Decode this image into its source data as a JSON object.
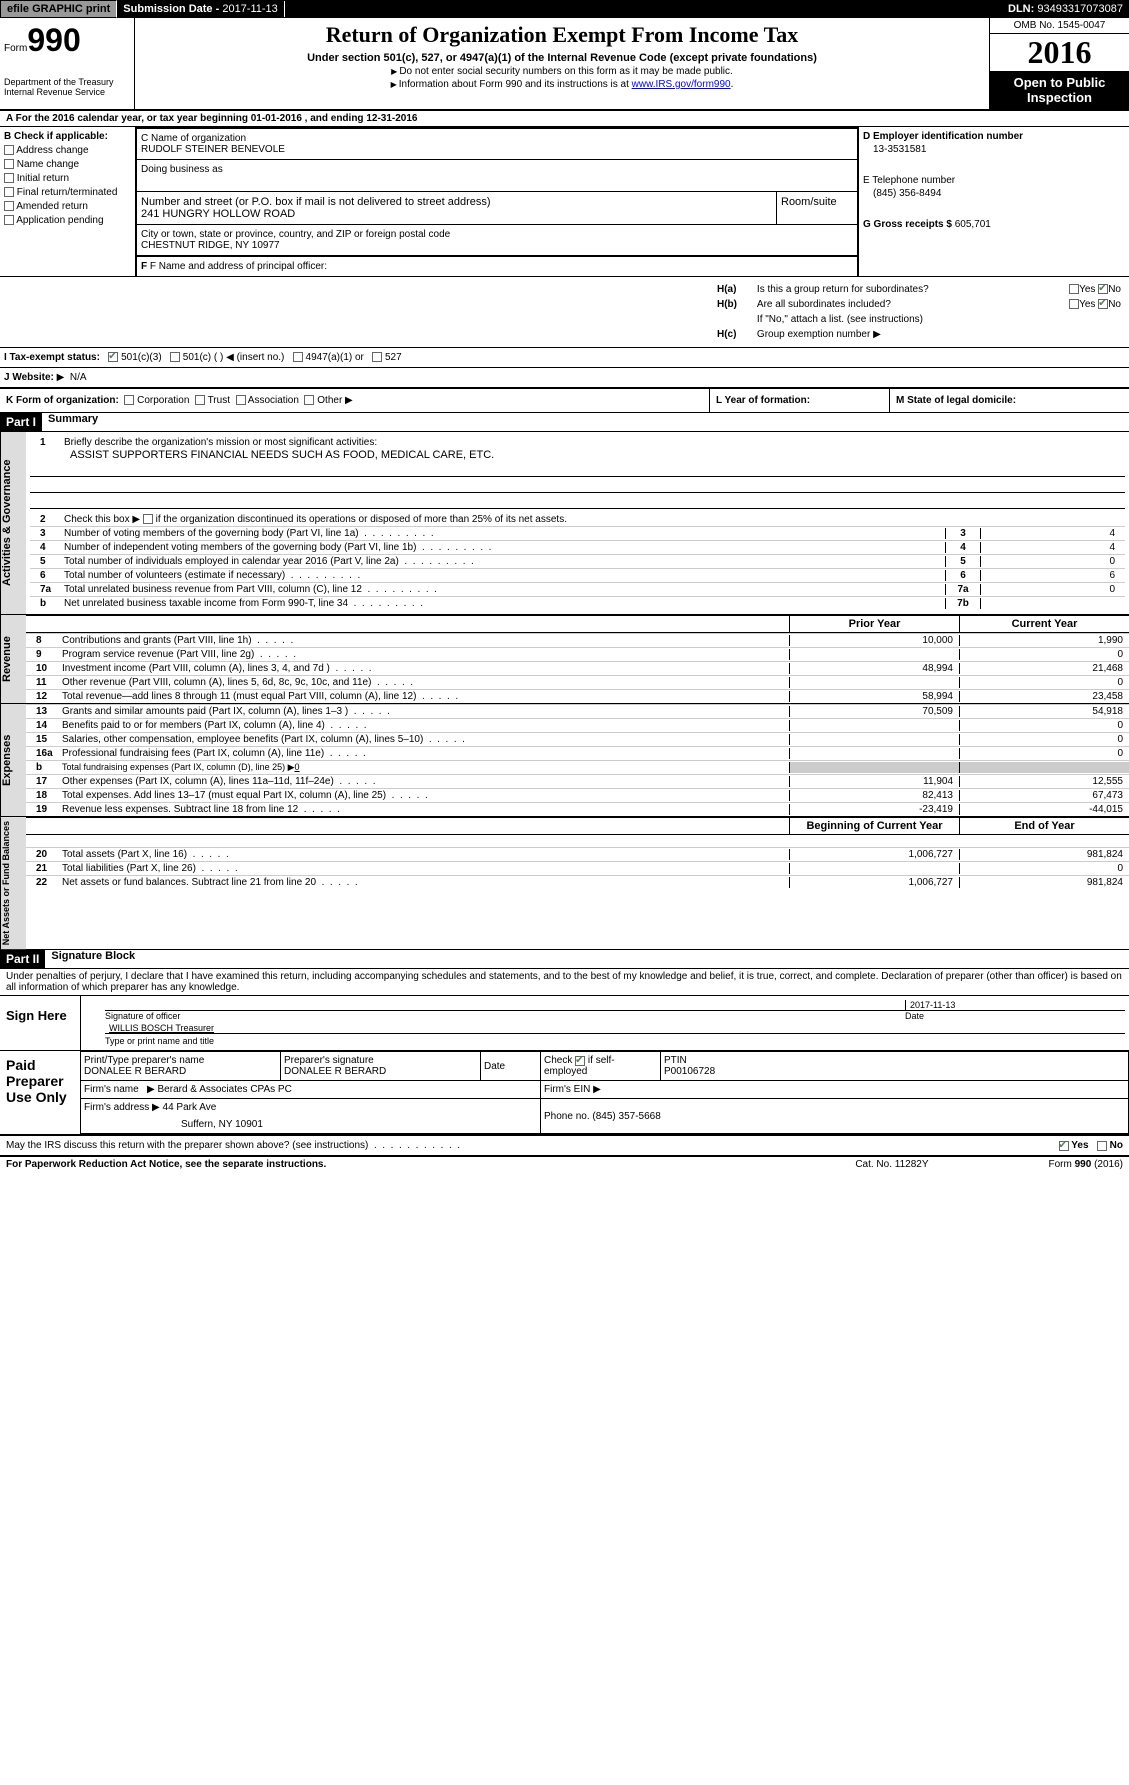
{
  "topBar": {
    "efile": "efile GRAPHIC print",
    "submissionLabel": "Submission Date - ",
    "submissionDate": "2017-11-13",
    "dlnLabel": "DLN: ",
    "dln": "93493317073087"
  },
  "header": {
    "formLabel": "Form",
    "formNum": "990",
    "dept1": "Department of the Treasury",
    "dept2": "Internal Revenue Service",
    "title": "Return of Organization Exempt From Income Tax",
    "subtitle": "Under section 501(c), 527, or 4947(a)(1) of the Internal Revenue Code (except private foundations)",
    "instr1": "Do not enter social security numbers on this form as it may be made public.",
    "instr2": "Information about Form 990 and its instructions is at ",
    "instrLink": "www.IRS.gov/form990",
    "omb": "OMB No. 1545-0047",
    "year": "2016",
    "inspection1": "Open to Public",
    "inspection2": "Inspection"
  },
  "rowA": "A  For the 2016 calendar year, or tax year beginning 01-01-2016   , and ending 12-31-2016",
  "colB": {
    "header": "B Check if applicable:",
    "items": [
      "Address change",
      "Name change",
      "Initial return",
      "Final return/terminated",
      "Amended return",
      "Application pending"
    ]
  },
  "colC": {
    "nameLabel": "C Name of organization",
    "nameVal": "RUDOLF STEINER BENEVOLE",
    "dbaLabel": "Doing business as",
    "streetLabel": "Number and street (or P.O. box if mail is not delivered to street address)",
    "streetVal": "241 HUNGRY HOLLOW ROAD",
    "roomLabel": "Room/suite",
    "cityLabel": "City or town, state or province, country, and ZIP or foreign postal code",
    "cityVal": "CHESTNUT RIDGE, NY  10977",
    "principalLabel": "F Name and address of principal officer:"
  },
  "colDE": {
    "einLabel": "D Employer identification number",
    "einVal": "13-3531581",
    "phoneLabel": "E Telephone number",
    "phoneVal": "(845) 356-8494",
    "grossLabel": "G Gross receipts $ ",
    "grossVal": "605,701"
  },
  "h": {
    "ha": "Is this a group return for subordinates?",
    "hb": "Are all subordinates included?",
    "hbNote": "If \"No,\" attach a list. (see instructions)",
    "hc": "Group exemption number",
    "yes": "Yes",
    "no": "No",
    "haLabel": "H(a)",
    "hbLabel": "H(b)",
    "hcLabel": "H(c)"
  },
  "lineI": {
    "label": "I  Tax-exempt status:",
    "opt1": "501(c)(3)",
    "opt2": "501(c) (  )",
    "opt2note": "(insert no.)",
    "opt3": "4947(a)(1) or",
    "opt4": "527"
  },
  "lineJ": {
    "label": "J  Website:",
    "val": "N/A"
  },
  "lineK": {
    "k": "K Form of organization:",
    "kOpts": [
      "Corporation",
      "Trust",
      "Association",
      "Other"
    ],
    "l": "L Year of formation:",
    "m": "M State of legal domicile:"
  },
  "part1": {
    "num": "Part I",
    "title": "Summary",
    "sidebar1": "Activities & Governance",
    "sidebar2": "Revenue",
    "sidebar3": "Expenses",
    "sidebar4": "Net Assets or Fund Balances",
    "q1": "Briefly describe the organization's mission or most significant activities:",
    "q1val": "ASSIST SUPPORTERS FINANCIAL NEEDS SUCH AS FOOD, MEDICAL CARE, ETC.",
    "q2": "Check this box",
    "q2rest": "if the organization discontinued its operations or disposed of more than 25% of its net assets.",
    "lines": [
      {
        "n": "3",
        "t": "Number of voting members of the governing body (Part VI, line 1a)",
        "b": "3",
        "v": "4"
      },
      {
        "n": "4",
        "t": "Number of independent voting members of the governing body (Part VI, line 1b)",
        "b": "4",
        "v": "4"
      },
      {
        "n": "5",
        "t": "Total number of individuals employed in calendar year 2016 (Part V, line 2a)",
        "b": "5",
        "v": "0"
      },
      {
        "n": "6",
        "t": "Total number of volunteers (estimate if necessary)",
        "b": "6",
        "v": "6"
      },
      {
        "n": "7a",
        "t": "Total unrelated business revenue from Part VIII, column (C), line 12",
        "b": "7a",
        "v": "0"
      },
      {
        "n": "b",
        "t": "Net unrelated business taxable income from Form 990-T, line 34",
        "b": "7b",
        "v": ""
      }
    ],
    "colHeaders": {
      "prior": "Prior Year",
      "current": "Current Year"
    },
    "revenue": [
      {
        "n": "8",
        "t": "Contributions and grants (Part VIII, line 1h)",
        "p": "10,000",
        "c": "1,990"
      },
      {
        "n": "9",
        "t": "Program service revenue (Part VIII, line 2g)",
        "p": "",
        "c": "0"
      },
      {
        "n": "10",
        "t": "Investment income (Part VIII, column (A), lines 3, 4, and 7d )",
        "p": "48,994",
        "c": "21,468"
      },
      {
        "n": "11",
        "t": "Other revenue (Part VIII, column (A), lines 5, 6d, 8c, 9c, 10c, and 11e)",
        "p": "",
        "c": "0"
      },
      {
        "n": "12",
        "t": "Total revenue—add lines 8 through 11 (must equal Part VIII, column (A), line 12)",
        "p": "58,994",
        "c": "23,458"
      }
    ],
    "expenses": [
      {
        "n": "13",
        "t": "Grants and similar amounts paid (Part IX, column (A), lines 1–3 )",
        "p": "70,509",
        "c": "54,918"
      },
      {
        "n": "14",
        "t": "Benefits paid to or for members (Part IX, column (A), line 4)",
        "p": "",
        "c": "0"
      },
      {
        "n": "15",
        "t": "Salaries, other compensation, employee benefits (Part IX, column (A), lines 5–10)",
        "p": "",
        "c": "0"
      },
      {
        "n": "16a",
        "t": "Professional fundraising fees (Part IX, column (A), line 11e)",
        "p": "",
        "c": "0"
      }
    ],
    "line16b": {
      "n": "b",
      "t": "Total fundraising expenses (Part IX, column (D), line 25)",
      "v": "0"
    },
    "expenses2": [
      {
        "n": "17",
        "t": "Other expenses (Part IX, column (A), lines 11a–11d, 11f–24e)",
        "p": "11,904",
        "c": "12,555"
      },
      {
        "n": "18",
        "t": "Total expenses. Add lines 13–17 (must equal Part IX, column (A), line 25)",
        "p": "82,413",
        "c": "67,473"
      },
      {
        "n": "19",
        "t": "Revenue less expenses. Subtract line 18 from line 12",
        "p": "-23,419",
        "c": "-44,015"
      }
    ],
    "colHeaders2": {
      "begin": "Beginning of Current Year",
      "end": "End of Year"
    },
    "netassets": [
      {
        "n": "20",
        "t": "Total assets (Part X, line 16)",
        "p": "1,006,727",
        "c": "981,824"
      },
      {
        "n": "21",
        "t": "Total liabilities (Part X, line 26)",
        "p": "",
        "c": "0"
      },
      {
        "n": "22",
        "t": "Net assets or fund balances. Subtract line 21 from line 20",
        "p": "1,006,727",
        "c": "981,824"
      }
    ]
  },
  "part2": {
    "num": "Part II",
    "title": "Signature Block",
    "declare": "Under penalties of perjury, I declare that I have examined this return, including accompanying schedules and statements, and to the best of my knowledge and belief, it is true, correct, and complete. Declaration of preparer (other than officer) is based on all information of which preparer has any knowledge.",
    "signHere": "Sign Here",
    "sigDate": "2017-11-13",
    "sigOfficer": "Signature of officer",
    "dateLabel": "Date",
    "sigName": "WILLIS BOSCH Treasurer",
    "sigNameLabel": "Type or print name and title",
    "paidLabel": "Paid Preparer Use Only",
    "prep": {
      "nameLabel": "Print/Type preparer's name",
      "nameVal": "DONALEE R BERARD",
      "sigLabel": "Preparer's signature",
      "sigVal": "DONALEE R BERARD",
      "dateLabel": "Date",
      "checkLabel": "Check",
      "selfLabel": "if self-employed",
      "ptinLabel": "PTIN",
      "ptinVal": "P00106728",
      "firmNameLabel": "Firm's name",
      "firmNameVal": "Berard & Associates CPAs PC",
      "firmEinLabel": "Firm's EIN",
      "firmAddrLabel": "Firm's address",
      "firmAddrVal1": "44 Park Ave",
      "firmAddrVal2": "Suffern, NY  10901",
      "phoneLabel": "Phone no.",
      "phoneVal": "(845) 357-5668"
    }
  },
  "footer": {
    "discuss": "May the IRS discuss this return with the preparer shown above? (see instructions)",
    "yes": "Yes",
    "no": "No",
    "paperwork": "For Paperwork Reduction Act Notice, see the separate instructions.",
    "cat": "Cat. No. 11282Y",
    "form": "Form 990 (2016)"
  }
}
